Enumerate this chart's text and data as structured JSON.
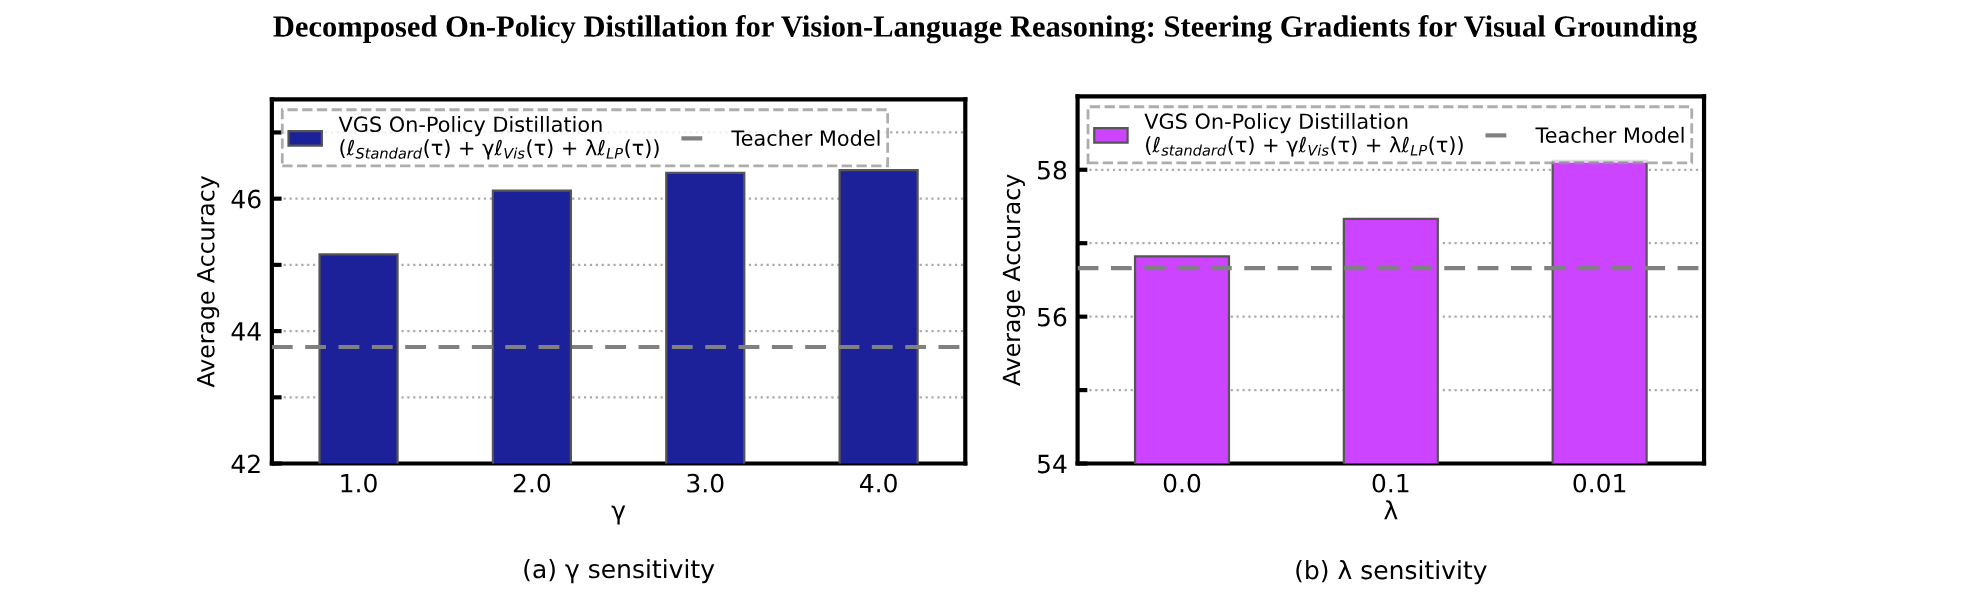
{
  "chart_data": [
    {
      "type": "bar",
      "annotations": [
        "Decomposed On-Policy Distillation for Vision-Language Reasoning: Steering Gradients for Visual Grounding"
      ],
      "title": "(a) γ sensitivity",
      "xlabel": "γ",
      "ylabel": "Average Accuracy",
      "categories": [
        "1.0",
        "2.0",
        "3.0",
        "4.0"
      ],
      "series": [
        {
          "name": "VGS On-Policy Distillation\n(ℓ$_{Standard}$(τ) + γℓ$_{Vis}$(τ) + λℓ$_{LP}$(τ))",
          "color": "#1c2199",
          "values": [
            45.16,
            46.12,
            46.39,
            46.43
          ]
        }
      ],
      "ref_lines": [
        {
          "axis": "y",
          "value": 43.76,
          "label": "Teacher Model",
          "color": "#808080",
          "line_style": "dashed"
        }
      ],
      "ylim": [
        42,
        47.5
      ],
      "yticks": [
        42,
        {
          "value": 43,
          "label": null
        },
        44,
        {
          "value": 45,
          "label": null
        },
        46,
        {
          "value": 47,
          "label": null
        }
      ],
      "grid": "y",
      "legend": "top left"
    },
    {
      "type": "bar",
      "title": "(b) λ sensitivity",
      "xlabel": "λ",
      "ylabel": "Average Accuracy",
      "categories": [
        "0.0",
        "0.1",
        "0.01"
      ],
      "series": [
        {
          "name": "VGS On-Policy Distillation\n(ℓ$_{standard}$(τ) + γℓ$_{Vis}$(τ) + λℓ$_{LP}$(τ))",
          "color": "#cc44ff",
          "values": [
            56.82,
            57.33,
            58.12
          ]
        }
      ],
      "ref_lines": [
        {
          "axis": "y",
          "value": 56.66,
          "label": "Teacher Model",
          "color": "#808080",
          "line_style": "dashed"
        }
      ],
      "ylim": [
        54,
        59
      ],
      "yticks": [
        54,
        {
          "value": 55,
          "label": null
        },
        56,
        {
          "value": 57,
          "label": null
        },
        58
      ],
      "grid": "y",
      "legend": "top left"
    }
  ]
}
